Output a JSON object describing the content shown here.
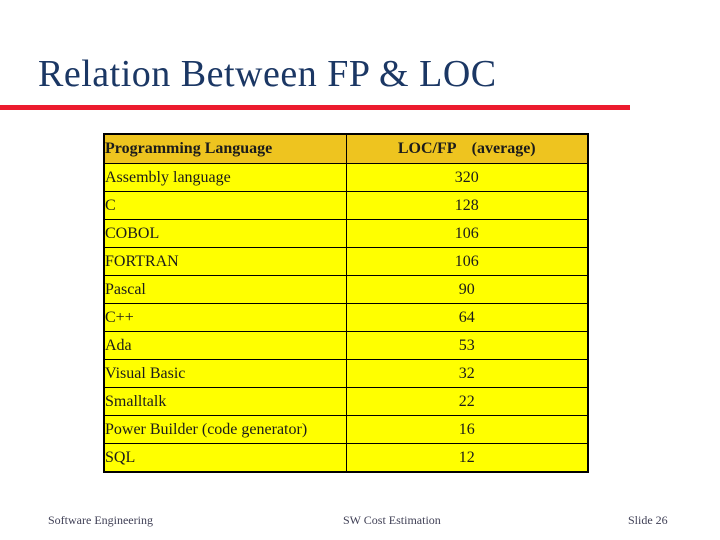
{
  "slide": {
    "title": "Relation Between FP & LOC",
    "footer": {
      "left": "Software Engineering",
      "center": "SW Cost Estimation",
      "right": "Slide 26"
    }
  },
  "table": {
    "header": {
      "language": "Programming Language",
      "loc_fp": "LOC/FP    (average)"
    },
    "rows": [
      {
        "language": "Assembly language",
        "loc_fp": "320"
      },
      {
        "language": "C",
        "loc_fp": "128"
      },
      {
        "language": "COBOL",
        "loc_fp": "106"
      },
      {
        "language": "FORTRAN",
        "loc_fp": "106"
      },
      {
        "language": "Pascal",
        "loc_fp": "90"
      },
      {
        "language": "C++",
        "loc_fp": "64"
      },
      {
        "language": "Ada",
        "loc_fp": "53"
      },
      {
        "language": "Visual Basic",
        "loc_fp": "32"
      },
      {
        "language": "Smalltalk",
        "loc_fp": "22"
      },
      {
        "language": "Power Builder (code generator)",
        "loc_fp": "16"
      },
      {
        "language": "SQL",
        "loc_fp": "12"
      }
    ]
  },
  "chart_data": {
    "type": "table",
    "title": "Relation Between FP & LOC",
    "columns": [
      "Programming Language",
      "LOC/FP (average)"
    ],
    "rows": [
      [
        "Assembly language",
        320
      ],
      [
        "C",
        128
      ],
      [
        "COBOL",
        106
      ],
      [
        "FORTRAN",
        106
      ],
      [
        "Pascal",
        90
      ],
      [
        "C++",
        64
      ],
      [
        "Ada",
        53
      ],
      [
        "Visual Basic",
        32
      ],
      [
        "Smalltalk",
        22
      ],
      [
        "Power Builder (code generator)",
        16
      ],
      [
        "SQL",
        12
      ]
    ]
  },
  "colors": {
    "title_text": "#1B3764",
    "title_rule": "#EC1B2E",
    "table_header_bg": "#EEC41F",
    "table_row_bg": "#FFFF00",
    "table_border": "#000000",
    "table_text": "#1B1B1B",
    "footer_text": "#3F3F55",
    "background": "#FFFFFF"
  }
}
